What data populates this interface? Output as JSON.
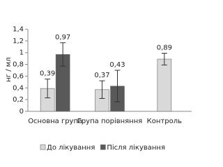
{
  "chart_data": {
    "type": "bar",
    "y_label": "нг / мл",
    "categories": [
      "Основна група",
      "Група порівняння",
      "Контроль"
    ],
    "series": [
      {
        "name": "До лікування",
        "color": "#d9d9d9",
        "values": [
          0.39,
          0.37,
          0.89
        ],
        "value_labels": [
          "0,39",
          "0,37",
          "0,89"
        ],
        "errors": [
          0.16,
          0.15,
          0.1
        ]
      },
      {
        "name": "Після лікування",
        "color": "#595959",
        "values": [
          0.97,
          0.43,
          null
        ],
        "value_labels": [
          "0,97",
          "0,43",
          null
        ],
        "errors": [
          0.2,
          0.27,
          null
        ]
      }
    ],
    "ylim": [
      0,
      1.4
    ],
    "yticks": [
      0,
      {
        "value": 0.2,
        "label": "0,2"
      },
      {
        "value": 0.4,
        "label": "0,4"
      },
      {
        "value": 0.6,
        "label": "0,6"
      },
      {
        "value": 0.8,
        "label": "0,8"
      },
      1,
      {
        "value": 1.2,
        "label": "1,2"
      },
      {
        "value": 1.4,
        "label": "1,4"
      }
    ],
    "grid": false
  }
}
